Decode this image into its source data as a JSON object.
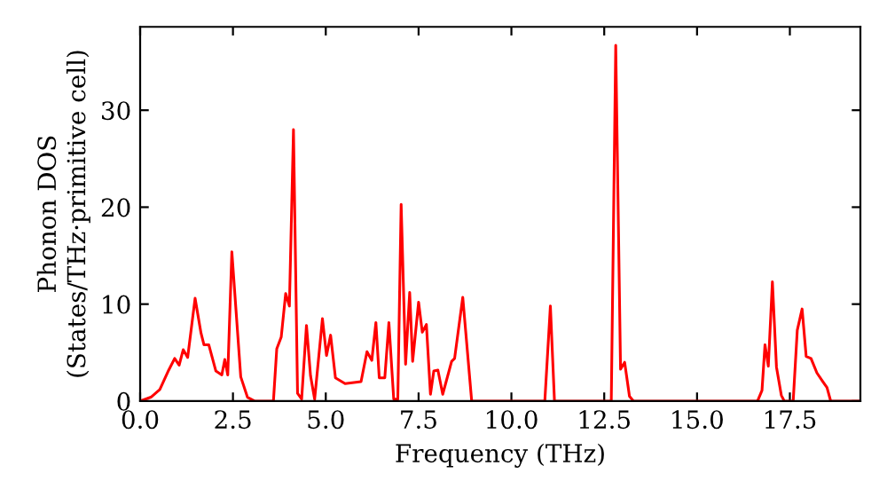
{
  "chart_data": {
    "type": "line",
    "xlabel": "Frequency (THz)",
    "ylabel": "Phonon DOS\n(States/THz·primitive cell)",
    "series": [
      {
        "color": "#ff0000",
        "x": [
          0,
          0.29,
          0.53,
          0.77,
          0.93,
          1.05,
          1.16,
          1.28,
          1.48,
          1.64,
          1.72,
          1.85,
          2.04,
          2.2,
          2.28,
          2.36,
          2.47,
          2.71,
          2.89,
          3.08,
          3.59,
          3.68,
          3.8,
          3.92,
          4.02,
          4.13,
          4.24,
          4.35,
          4.48,
          4.59,
          4.7,
          4.91,
          5.02,
          5.13,
          5.26,
          5.52,
          5.95,
          6.11,
          6.24,
          6.35,
          6.44,
          6.59,
          6.7,
          6.83,
          6.94,
          7.03,
          7.15,
          7.26,
          7.34,
          7.5,
          7.6,
          7.71,
          7.82,
          7.91,
          8.02,
          8.15,
          8.39,
          8.47,
          8.69,
          8.93,
          10.9,
          11.05,
          11.16,
          12.69,
          12.81,
          12.94,
          13.05,
          13.18,
          13.29,
          16.63,
          16.75,
          16.83,
          16.92,
          17.03,
          17.14,
          17.27,
          17.35,
          17.59,
          17.7,
          17.83,
          17.94,
          18.07,
          18.23,
          18.39,
          18.5,
          18.6,
          19.4
        ],
        "values": [
          0,
          0.4,
          1.2,
          3.2,
          4.4,
          3.7,
          5.3,
          4.5,
          10.6,
          7.0,
          5.8,
          5.8,
          3.1,
          2.7,
          4.3,
          2.7,
          15.4,
          2.5,
          0.4,
          0,
          0,
          5.4,
          6.6,
          11.1,
          9.8,
          28.0,
          0.8,
          0.2,
          7.8,
          2.6,
          0.2,
          8.5,
          4.7,
          6.8,
          2.4,
          1.8,
          2.0,
          5.1,
          4.2,
          8.1,
          2.4,
          2.4,
          8.1,
          0.2,
          0.2,
          20.3,
          3.8,
          11.2,
          4.1,
          10.2,
          7.1,
          7.9,
          0.7,
          3.1,
          3.2,
          0.7,
          4.1,
          4.4,
          10.7,
          0,
          0,
          9.8,
          0,
          0,
          36.7,
          3.3,
          4.0,
          0.5,
          0,
          0,
          1.1,
          5.8,
          3.6,
          12.3,
          3.5,
          0.6,
          0,
          0,
          7.3,
          9.5,
          4.6,
          4.4,
          2.9,
          2.0,
          1.4,
          0,
          0
        ]
      }
    ],
    "xlim": [
      0,
      19.4
    ],
    "ylim": [
      0,
      38.6
    ],
    "xticks": [
      {
        "value": 0,
        "label": "0.0"
      },
      {
        "value": 2.5,
        "label": "2.5"
      },
      {
        "value": 5,
        "label": "5.0"
      },
      {
        "value": 7.5,
        "label": "7.5"
      },
      {
        "value": 10,
        "label": "10.0"
      },
      {
        "value": 12.5,
        "label": "12.5"
      },
      {
        "value": 15,
        "label": "15.0"
      },
      {
        "value": 17.5,
        "label": "17.5"
      }
    ],
    "yticks": [
      0,
      10,
      20,
      30
    ],
    "grid": false,
    "legend": false
  }
}
